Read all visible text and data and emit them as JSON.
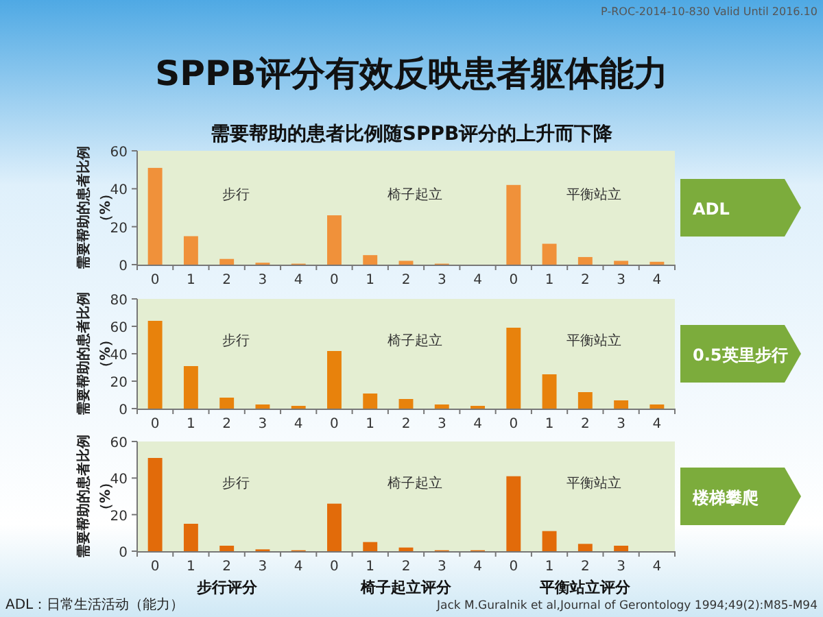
{
  "chart_data": [
    {
      "type": "bar",
      "title": "SPPB评分有效反映患者躯体能力",
      "subtitle": "需要帮助的患者比例随SPPB评分的上升而下降",
      "ylabel": "需要帮助的患者比例（%）",
      "y2label": "ADL",
      "categories": [
        "0",
        "1",
        "2",
        "3",
        "4",
        "0",
        "1",
        "2",
        "3",
        "4",
        "0",
        "1",
        "2",
        "3",
        "4"
      ],
      "values": [
        51,
        15,
        3,
        1,
        0.5,
        26,
        5,
        2,
        0.5,
        0,
        42,
        11,
        4,
        2,
        1.5
      ],
      "color": "#f0913a",
      "ylim": [
        0,
        60
      ],
      "yticks": [
        0,
        20,
        40,
        60
      ],
      "grid": false,
      "annotations": [
        "步行",
        "椅子起立",
        "平衡站立",
        "P-ROC-2014-10-830  Valid Until 2016.10"
      ]
    },
    {
      "type": "bar",
      "ylabel": "需要帮助的患者比例（%）",
      "y2label": "0.5英里步行",
      "categories": [
        "0",
        "1",
        "2",
        "3",
        "4",
        "0",
        "1",
        "2",
        "3",
        "4",
        "0",
        "1",
        "2",
        "3",
        "4"
      ],
      "values": [
        64,
        31,
        8,
        3,
        2,
        42,
        11,
        7,
        3,
        2,
        59,
        25,
        12,
        6,
        3
      ],
      "color": "#e8820c",
      "ylim": [
        0,
        80
      ],
      "yticks": [
        0,
        20,
        40,
        60,
        80
      ],
      "grid": false,
      "annotations": [
        "步行",
        "椅子起立",
        "平衡站立"
      ]
    },
    {
      "type": "bar",
      "ylabel": "需要帮助的患者比例（%）",
      "y2label": "楼梯攀爬",
      "categories": [
        "0",
        "1",
        "2",
        "3",
        "4",
        "0",
        "1",
        "2",
        "3",
        "4",
        "0",
        "1",
        "2",
        "3",
        "4"
      ],
      "values": [
        51,
        15,
        3,
        1,
        0.5,
        26,
        5,
        2,
        0.5,
        0.5,
        41,
        11,
        4,
        3,
        null
      ],
      "color": "#e26b0a",
      "ylim": [
        0,
        60
      ],
      "yticks": [
        0,
        20,
        40,
        60
      ],
      "grid": false,
      "annotations": [
        "步行",
        "椅子起立",
        "平衡站立",
        "步行评分",
        "椅子起立评分",
        "平衡站立评分",
        "ADL：日常生活活动（能力）",
        "Jack M.Guralnik et al,Journal of Gerontology 1994;49(2):M85-M94"
      ]
    }
  ]
}
